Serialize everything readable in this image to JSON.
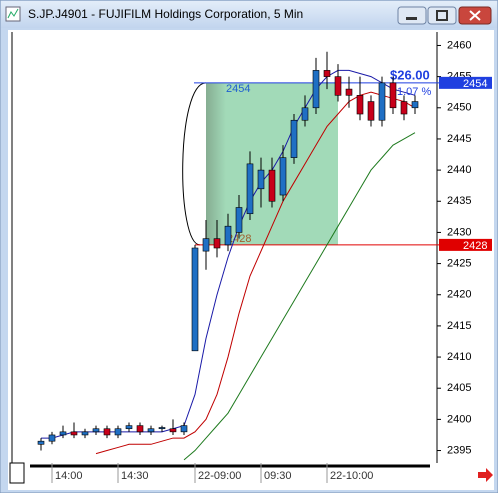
{
  "window": {
    "title": "S.JP.J4901 - FUJIFILM Holdings Corporation, 5 Min"
  },
  "chart_data": {
    "type": "candlestick",
    "categories": [
      null,
      "14:00",
      null,
      null,
      null,
      null,
      null,
      "14:30",
      null,
      null,
      null,
      null,
      null,
      null,
      "22-09:00",
      null,
      null,
      null,
      null,
      null,
      "09:30",
      null,
      null,
      null,
      null,
      null,
      "22-10:00",
      null,
      null,
      null,
      null,
      null,
      null,
      null,
      null
    ],
    "open": [
      2396,
      2396.5,
      2397.5,
      2398,
      2397.5,
      2398,
      2398.5,
      2397.5,
      2398.5,
      2399,
      2398,
      2398.5,
      2398.5,
      2398,
      2411,
      2427,
      2429,
      2428,
      2430,
      2433,
      2437,
      2440,
      2436,
      2442,
      2448,
      2450,
      2456,
      2455,
      2453,
      2452,
      2451,
      2448,
      2454,
      2451,
      2450
    ],
    "high": [
      2397,
      2398,
      2399,
      2399.5,
      2398.5,
      2399,
      2399,
      2399,
      2399.5,
      2399.5,
      2399,
      2399,
      2400,
      2399.5,
      2428,
      2432,
      2432,
      2433,
      2436,
      2443,
      2442,
      2442,
      2444,
      2449,
      2452,
      2458,
      2459,
      2457,
      2455,
      2455,
      2452,
      2455,
      2455,
      2452,
      2452
    ],
    "low": [
      2395,
      2396,
      2397,
      2397,
      2397,
      2397.5,
      2397,
      2397,
      2398,
      2397.5,
      2397.5,
      2398,
      2397.5,
      2397.5,
      2411,
      2424,
      2426,
      2427,
      2429,
      2432,
      2434,
      2434,
      2435,
      2441,
      2447,
      2449,
      2453,
      2451,
      2450,
      2448,
      2447,
      2447,
      2449,
      2448,
      2449
    ],
    "close": [
      2396.5,
      2397.5,
      2398,
      2397.5,
      2398,
      2398.5,
      2397.5,
      2398.5,
      2399,
      2398,
      2398.5,
      2398.7,
      2398,
      2399,
      2427.5,
      2429,
      2427.5,
      2431,
      2434,
      2441,
      2440,
      2435,
      2442,
      2448,
      2450,
      2456,
      2455,
      2452,
      2452,
      2449,
      2448,
      2454,
      2450,
      2449,
      2451
    ],
    "up_color": "#1f6fc4",
    "down_color": "#c8001a",
    "series": [
      {
        "color": "#1a1aa8",
        "values": [
          2397,
          2397,
          2397.5,
          2398,
          2398,
          2398,
          2398,
          2398,
          2398,
          2398,
          2398,
          2398,
          2398.5,
          2399,
          2404,
          2413,
          2420,
          2426,
          2431,
          2435,
          2438,
          2440,
          2443,
          2447,
          2450,
          2453,
          2455,
          2456,
          2456,
          2455.5,
          2455,
          2454,
          2453,
          2452.5,
          2452
        ]
      },
      {
        "color": "#c00000",
        "values": [
          null,
          null,
          null,
          null,
          null,
          2394.5,
          2395,
          2395.5,
          2396,
          2396,
          2396,
          2396.5,
          2397,
          2397,
          2398,
          2400,
          2404,
          2410,
          2417,
          2423,
          2427,
          2431,
          2435,
          2438,
          2441,
          2444,
          2447,
          2449,
          2451,
          2452,
          2452.5,
          2452,
          2451.5,
          2451,
          2450
        ]
      },
      {
        "color": "#1e7a1e",
        "values": [
          null,
          null,
          null,
          null,
          null,
          null,
          null,
          null,
          null,
          null,
          null,
          null,
          null,
          2393.5,
          2395,
          2397,
          2399,
          2401,
          2404,
          2407,
          2410,
          2413,
          2416,
          2419,
          2422,
          2425,
          2428,
          2431,
          2434,
          2437,
          2440,
          2442,
          2444,
          2445,
          2446
        ]
      }
    ],
    "ylim": [
      2393,
      2462
    ],
    "yticks": [
      2395,
      2400,
      2405,
      2410,
      2415,
      2420,
      2425,
      2430,
      2435,
      2440,
      2445,
      2450,
      2455,
      2460
    ],
    "range": {
      "start_index": 15,
      "end_index": 27,
      "high": 2454,
      "low": 2428,
      "color": "#9dd8b4"
    },
    "change": {
      "value": 26,
      "label": "$26.00"
    },
    "change_pct": {
      "value": 1.07,
      "label": "1.07 %"
    },
    "price_markers": [
      {
        "value": 2454,
        "color": "#1f3fe0"
      },
      {
        "value": 2428,
        "color": "#e00000"
      }
    ]
  }
}
